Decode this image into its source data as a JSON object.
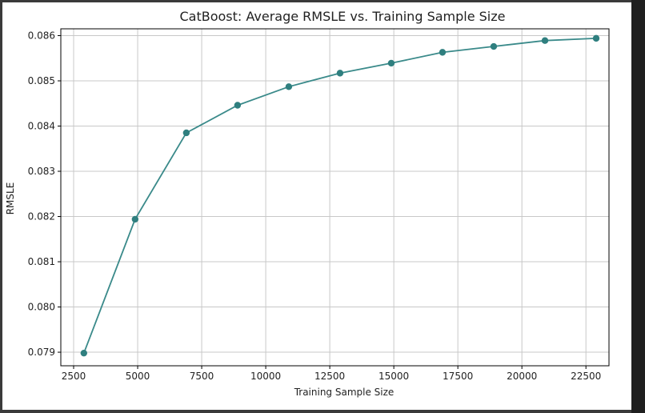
{
  "colors": {
    "line": "#3a8a8a",
    "marker": "#2f7f7f",
    "grid": "#c8c8c8",
    "axis": "#000000"
  },
  "chart_data": {
    "type": "line",
    "title": "CatBoost: Average RMSLE vs. Training Sample Size",
    "xlabel": "Training Sample Size",
    "ylabel": "RMSLE",
    "xlim": [
      2000,
      23400
    ],
    "ylim": [
      0.0787,
      0.08615
    ],
    "xticks": [
      2500,
      5000,
      7500,
      10000,
      12500,
      15000,
      17500,
      20000,
      22500
    ],
    "xtick_labels": [
      "2500",
      "5000",
      "7500",
      "10000",
      "12500",
      "15000",
      "17500",
      "20000",
      "22500"
    ],
    "yticks": [
      0.079,
      0.08,
      0.081,
      0.082,
      0.083,
      0.084,
      0.085,
      0.086
    ],
    "ytick_labels": [
      "0.079",
      "0.080",
      "0.081",
      "0.082",
      "0.083",
      "0.084",
      "0.085",
      "0.086"
    ],
    "grid": true,
    "marker": "circle",
    "x": [
      2900,
      4900,
      6900,
      8900,
      10900,
      12900,
      14900,
      16900,
      18900,
      20900,
      22900
    ],
    "y": [
      0.07898,
      0.08194,
      0.08385,
      0.08446,
      0.08487,
      0.08517,
      0.08539,
      0.08563,
      0.08576,
      0.08589,
      0.08594
    ]
  }
}
